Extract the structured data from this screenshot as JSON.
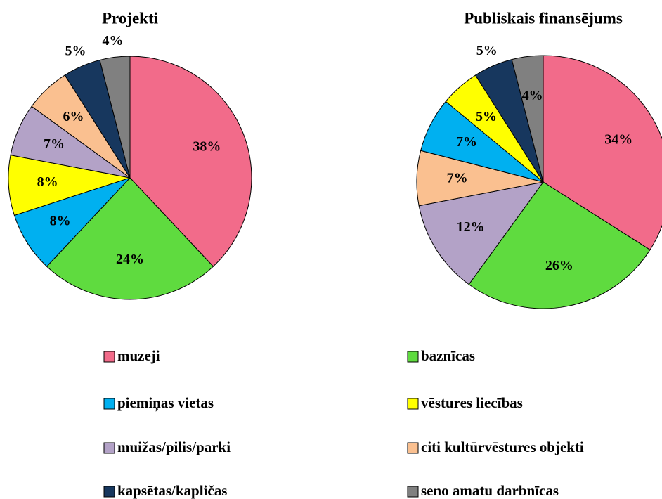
{
  "chart_data": [
    {
      "type": "pie",
      "title": "Projekti",
      "categories": [
        "muzeji",
        "baznīcas",
        "piemiņas vietas",
        "vēstures liecības",
        "muižas/pilis/parki",
        "citi kultūrvēstures objekti",
        "kapsētas/kapličas",
        "seno amatu darbnīcas"
      ],
      "values": [
        38,
        24,
        8,
        8,
        7,
        6,
        5,
        4
      ],
      "value_labels": [
        "38%",
        "24%",
        "8%",
        "8%",
        "7%",
        "6%",
        "5%",
        "4%"
      ],
      "colors": [
        "#f26b8a",
        "#5fdb3f",
        "#00b0f0",
        "#ffff00",
        "#b3a2c7",
        "#fac090",
        "#17375e",
        "#808080"
      ]
    },
    {
      "type": "pie",
      "title": "Publiskais finansējums",
      "categories": [
        "muzeji",
        "baznīcas",
        "muižas/pilis/parki",
        "citi kultūrvēstures objekti",
        "piemiņas vietas",
        "vēstures liecības",
        "kapsētas/kapličas",
        "seno amatu darbnīcas"
      ],
      "values": [
        34,
        26,
        12,
        7,
        7,
        5,
        5,
        4
      ],
      "value_labels": [
        "34%",
        "26%",
        "12%",
        "7%",
        "7%",
        "5%",
        "5%",
        "4%"
      ],
      "colors": [
        "#f26b8a",
        "#5fdb3f",
        "#b3a2c7",
        "#fac090",
        "#00b0f0",
        "#ffff00",
        "#17375e",
        "#808080"
      ]
    }
  ]
}
